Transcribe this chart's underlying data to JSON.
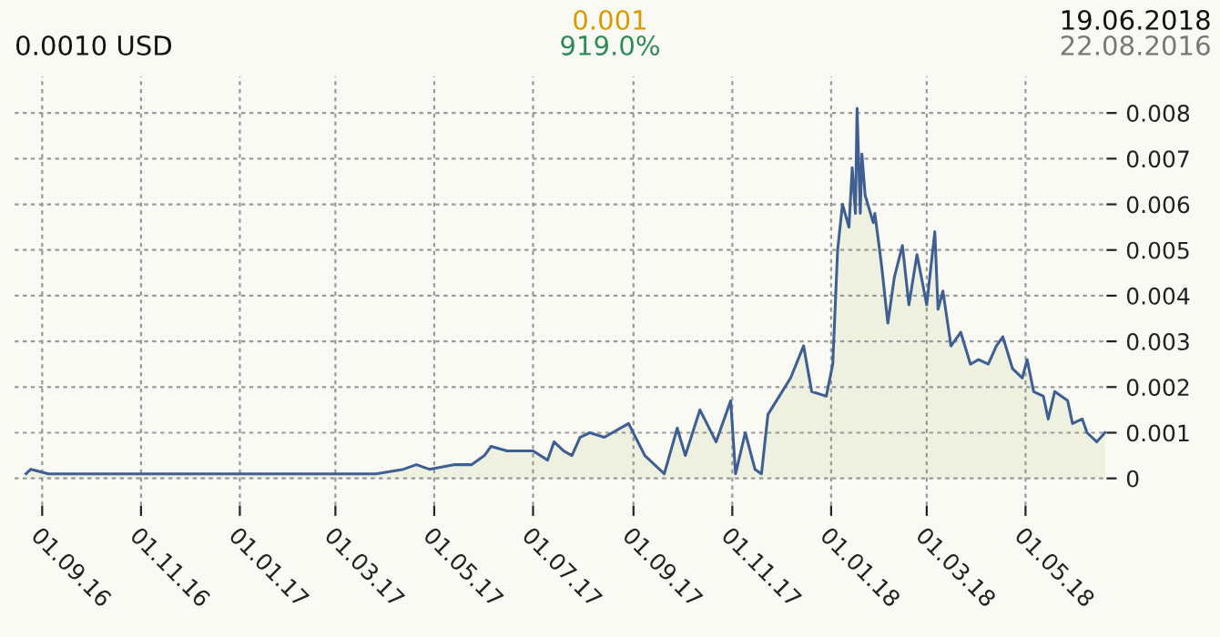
{
  "chart_data": {
    "type": "area",
    "annotations": [
      "0.0010 USD",
      "0.001",
      "919.0%",
      "19.06.2018",
      "22.08.2016"
    ],
    "x": [
      "2016-08-22",
      "2016-08-25",
      "2016-09-05",
      "2016-10-17",
      "2016-12-01",
      "2017-01-01",
      "2017-01-26",
      "2017-02-05",
      "2017-02-15",
      "2017-02-28",
      "2017-03-26",
      "2017-04-12",
      "2017-04-20",
      "2017-04-28",
      "2017-05-13",
      "2017-05-24",
      "2017-06-01",
      "2017-06-05",
      "2017-06-15",
      "2017-07-01",
      "2017-07-10",
      "2017-07-14",
      "2017-07-20",
      "2017-07-25",
      "2017-07-30",
      "2017-08-05",
      "2017-08-14",
      "2017-08-29",
      "2017-09-08",
      "2017-09-20",
      "2017-09-28",
      "2017-10-03",
      "2017-10-12",
      "2017-10-22",
      "2017-10-31",
      "2017-11-03",
      "2017-11-09",
      "2017-11-15",
      "2017-11-19",
      "2017-11-23",
      "2017-11-30",
      "2017-12-07",
      "2017-12-15",
      "2017-12-20",
      "2017-12-29",
      "2018-01-02",
      "2018-01-05",
      "2018-01-08",
      "2018-01-12",
      "2018-01-14",
      "2018-01-16",
      "2018-01-17",
      "2018-01-19",
      "2018-01-20",
      "2018-01-22",
      "2018-01-27",
      "2018-01-28",
      "2018-02-01",
      "2018-02-05",
      "2018-02-09",
      "2018-02-14",
      "2018-02-18",
      "2018-02-23",
      "2018-03-01",
      "2018-03-06",
      "2018-03-08",
      "2018-03-11",
      "2018-03-16",
      "2018-03-22",
      "2018-03-28",
      "2018-04-02",
      "2018-04-08",
      "2018-04-13",
      "2018-04-17",
      "2018-04-23",
      "2018-04-29",
      "2018-05-02",
      "2018-05-06",
      "2018-05-12",
      "2018-05-15",
      "2018-05-19",
      "2018-05-27",
      "2018-05-30",
      "2018-06-05",
      "2018-06-08",
      "2018-06-14",
      "2018-06-19"
    ],
    "series": [
      {
        "color": "#3f5f93",
        "values": [
          0.0001,
          0.0002,
          0.0001,
          0.0001,
          0.0001,
          0.0001,
          0.0001,
          0.0001,
          0.0001,
          0.0001,
          0.0001,
          0.0002,
          0.0003,
          0.0002,
          0.0003,
          0.0003,
          0.0005,
          0.0007,
          0.0006,
          0.0006,
          0.0004,
          0.0008,
          0.0006,
          0.0005,
          0.0009,
          0.001,
          0.0009,
          0.0012,
          0.0005,
          0.0001,
          0.0011,
          0.0005,
          0.0015,
          0.0008,
          0.0017,
          0.0001,
          0.001,
          0.0002,
          0.0001,
          0.0014,
          0.0018,
          0.0022,
          0.0029,
          0.0019,
          0.0018,
          0.0025,
          0.005,
          0.006,
          0.0055,
          0.0068,
          0.0058,
          0.0081,
          0.0058,
          0.0071,
          0.0062,
          0.0056,
          0.0058,
          0.0047,
          0.0034,
          0.0044,
          0.0051,
          0.0038,
          0.0049,
          0.0038,
          0.0054,
          0.0037,
          0.0041,
          0.0029,
          0.0032,
          0.0025,
          0.0026,
          0.0025,
          0.0029,
          0.0031,
          0.0024,
          0.0022,
          0.0026,
          0.0019,
          0.0018,
          0.0013,
          0.0019,
          0.0017,
          0.0012,
          0.0013,
          0.001,
          0.0008,
          0.001
        ]
      }
    ],
    "xlim": [
      "2016-08-15",
      "2018-06-20"
    ],
    "xticks": [
      {
        "value": "2016-09-01",
        "label": "01.09.16"
      },
      {
        "value": "2016-11-01",
        "label": "01.11.16"
      },
      {
        "value": "2017-01-01",
        "label": "01.01.17"
      },
      {
        "value": "2017-03-01",
        "label": "01.03.17"
      },
      {
        "value": "2017-05-01",
        "label": "01.05.17"
      },
      {
        "value": "2017-07-01",
        "label": "01.07.17"
      },
      {
        "value": "2017-09-01",
        "label": "01.09.17"
      },
      {
        "value": "2017-11-01",
        "label": "01.11.17"
      },
      {
        "value": "2018-01-01",
        "label": "01.01.18"
      },
      {
        "value": "2018-03-01",
        "label": "01.03.18"
      },
      {
        "value": "2018-05-01",
        "label": "01.05.18"
      }
    ],
    "ylim": [
      -0.0006,
      0.0088
    ],
    "yticks": [
      0,
      0.001,
      0.002,
      0.003,
      0.004,
      0.005,
      0.006,
      0.007,
      0.008
    ],
    "grid": true,
    "line_style": "solid",
    "legend": false
  }
}
